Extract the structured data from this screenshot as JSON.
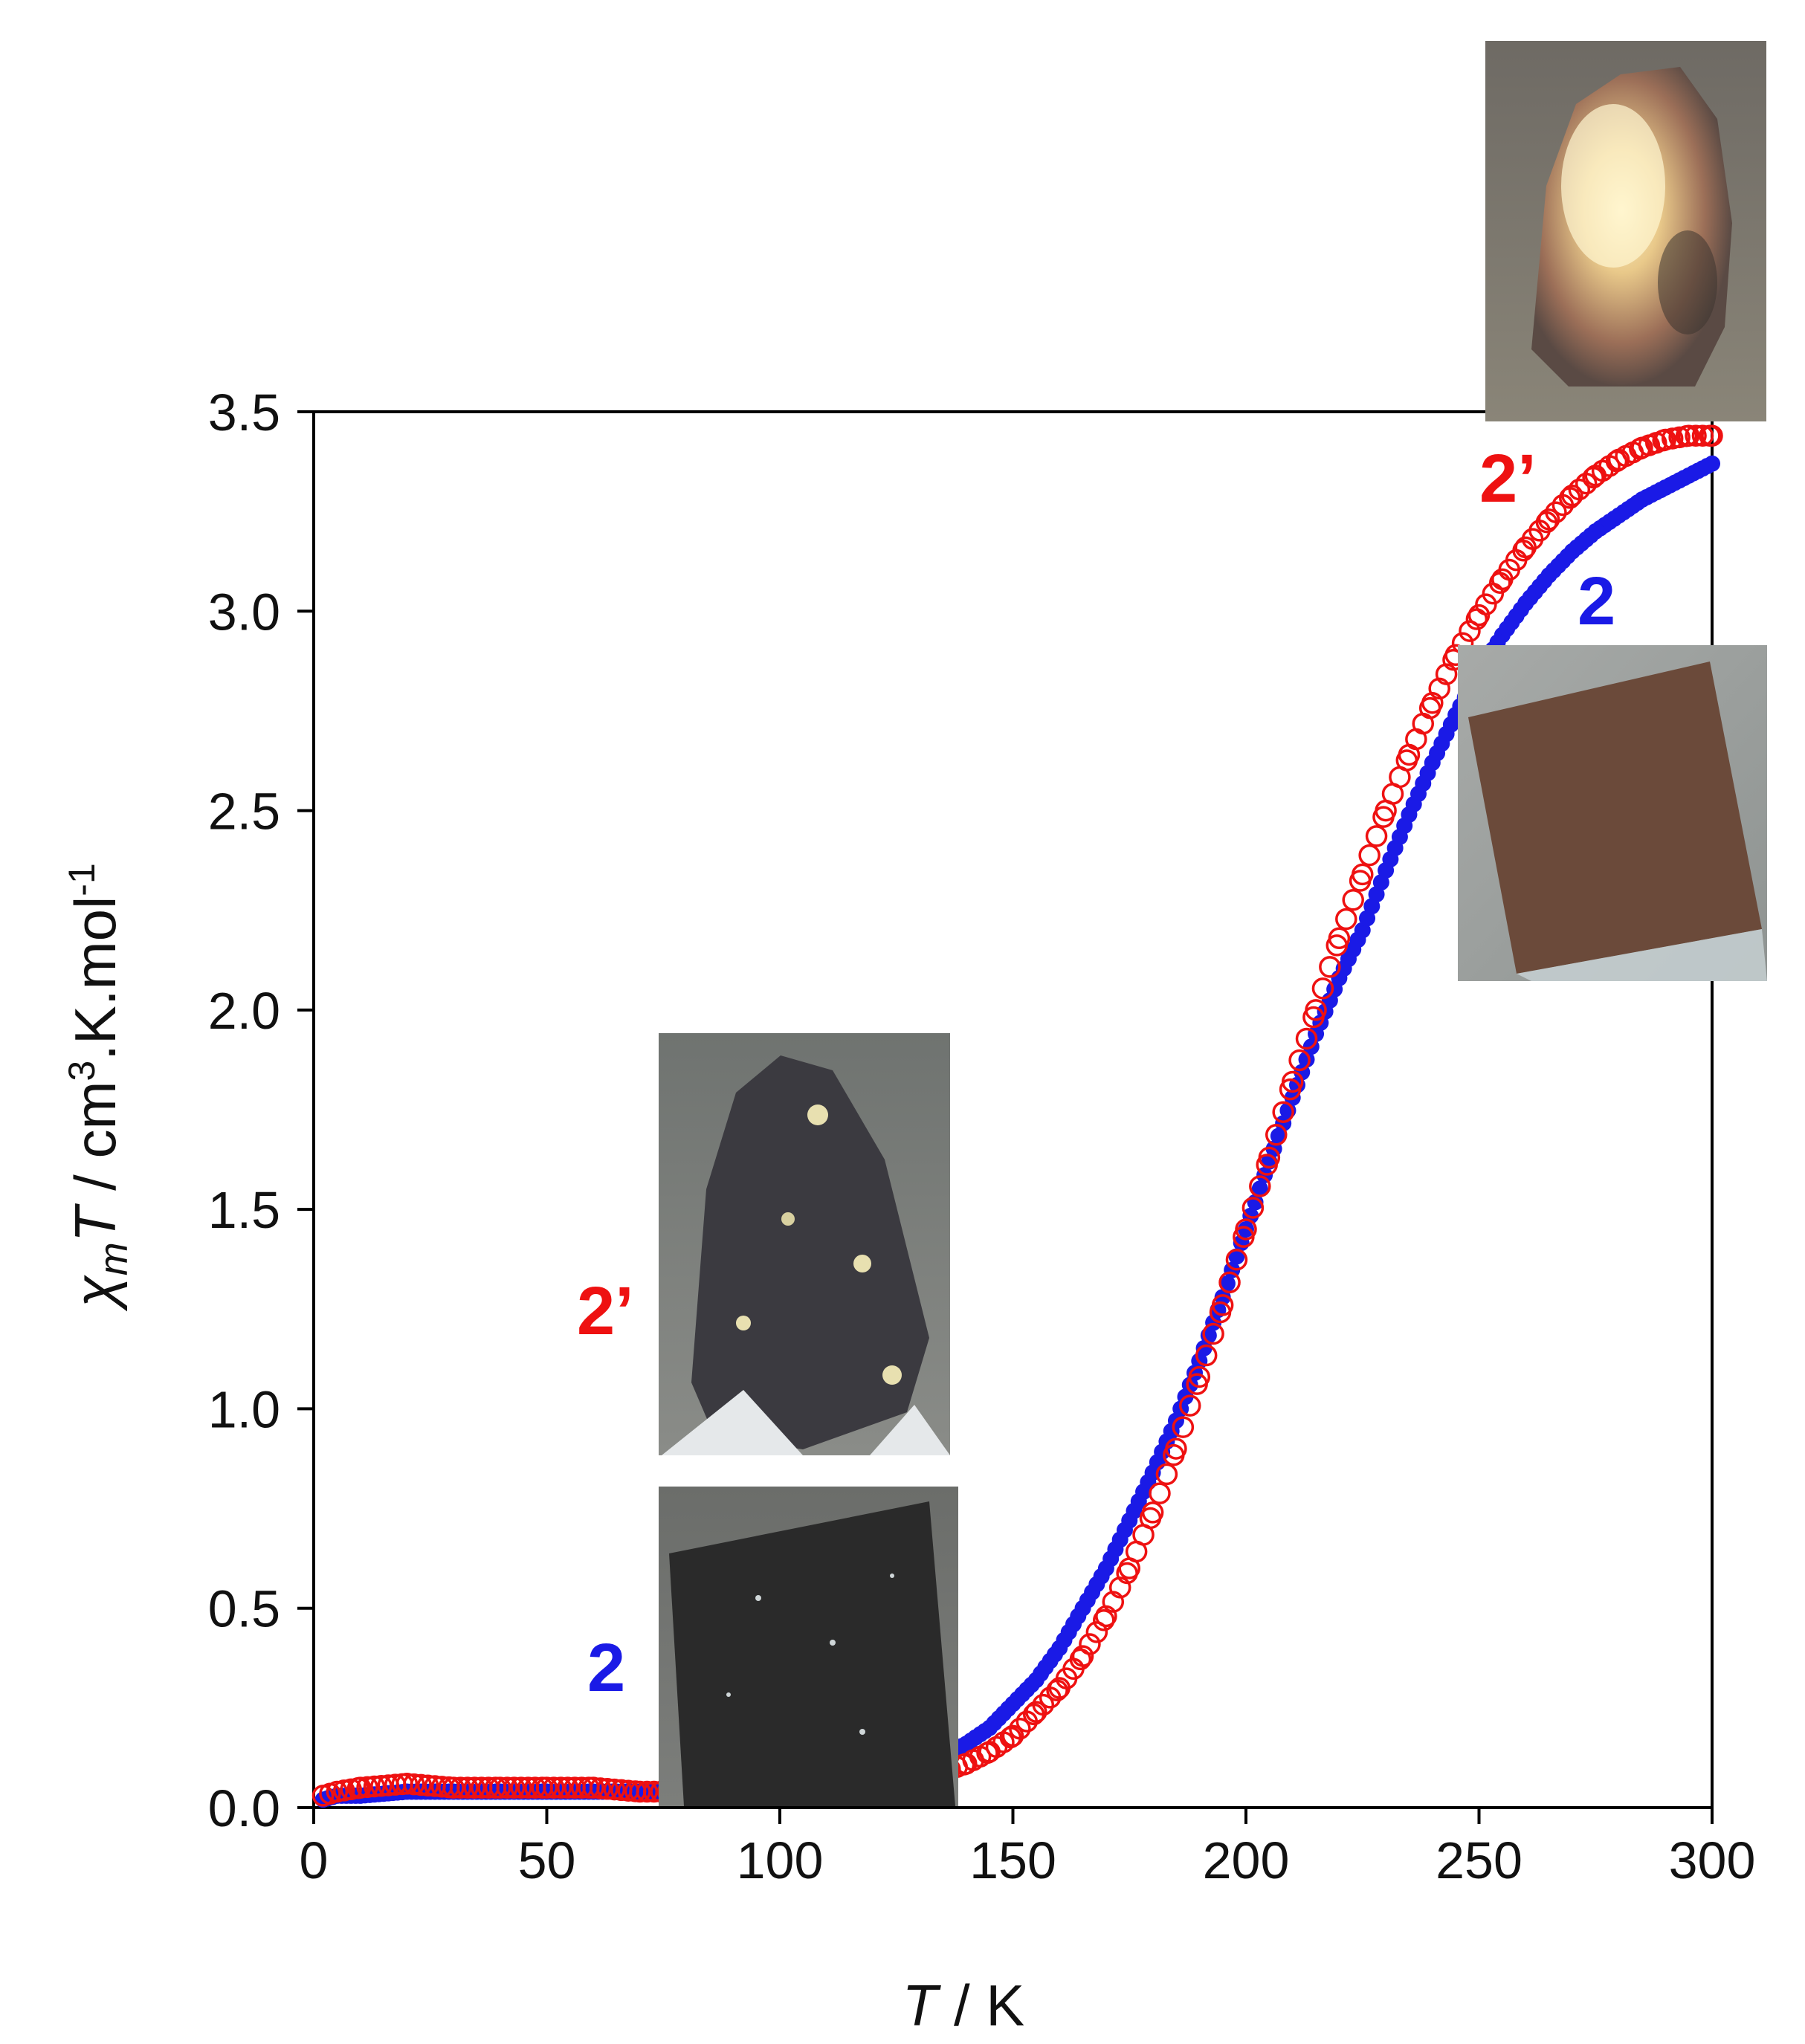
{
  "chart_data": {
    "type": "scatter",
    "xlabel": {
      "italic": "T",
      "rest": " / K"
    },
    "ylabel": {
      "chi": "χ",
      "sub": "m",
      "italic": "T",
      "rest1": " / cm",
      "sup1": "3",
      "rest2": ".K.mol",
      "sup2": "-1"
    },
    "xlim": [
      0,
      300
    ],
    "ylim": [
      0,
      3.5
    ],
    "xticks": [
      "0",
      "50",
      "100",
      "150",
      "200",
      "250",
      "300"
    ],
    "yticks": [
      "0.0",
      "0.5",
      "1.0",
      "1.5",
      "2.0",
      "2.5",
      "3.0",
      "3.5"
    ],
    "grid": false,
    "legend": "none",
    "annotations": [
      {
        "text": "2’",
        "color": "#ee1111",
        "place": "upper-right",
        "series": "2’"
      },
      {
        "text": "2",
        "color": "#1a1ae6",
        "place": "upper-right",
        "series": "2"
      },
      {
        "text": "2’",
        "color": "#ee1111",
        "place": "middle-left",
        "series": "2’"
      },
      {
        "text": "2",
        "color": "#1a1ae6",
        "place": "lower-left",
        "series": "2"
      }
    ],
    "insets": [
      {
        "depicts": "crystal photo, light tip",
        "place": "top-right",
        "series": "2’"
      },
      {
        "depicts": "crystal photo, brown square",
        "place": "right",
        "series": "2"
      },
      {
        "depicts": "crystal photo, dark tip",
        "place": "middle-left",
        "series": "2’"
      },
      {
        "depicts": "crystal photo, dark square",
        "place": "lower-left",
        "series": "2"
      }
    ],
    "series": [
      {
        "name": "2",
        "color": "#1a1ae6",
        "marker": "filled-circle",
        "x": [
          2,
          5,
          10,
          20,
          30,
          40,
          50,
          60,
          70,
          80,
          90,
          100,
          110,
          120,
          125,
          130,
          135,
          140,
          145,
          150,
          155,
          160,
          165,
          170,
          175,
          180,
          185,
          190,
          195,
          200,
          205,
          210,
          215,
          220,
          225,
          230,
          235,
          240,
          245,
          250,
          255,
          260,
          265,
          270,
          275,
          280,
          285,
          290,
          295,
          300
        ],
        "values": [
          0.02,
          0.03,
          0.03,
          0.04,
          0.04,
          0.04,
          0.04,
          0.04,
          0.04,
          0.04,
          0.04,
          0.05,
          0.06,
          0.07,
          0.08,
          0.1,
          0.13,
          0.16,
          0.2,
          0.26,
          0.32,
          0.4,
          0.5,
          0.6,
          0.72,
          0.84,
          0.97,
          1.12,
          1.28,
          1.45,
          1.62,
          1.78,
          1.94,
          2.08,
          2.2,
          2.35,
          2.49,
          2.62,
          2.74,
          2.85,
          2.94,
          3.02,
          3.09,
          3.15,
          3.2,
          3.24,
          3.28,
          3.31,
          3.34,
          3.37
        ]
      },
      {
        "name": "2’",
        "color": "#ee1111",
        "marker": "open-circle",
        "x": [
          2,
          5,
          10,
          20,
          30,
          40,
          50,
          60,
          70,
          80,
          90,
          100,
          110,
          120,
          125,
          130,
          135,
          140,
          145,
          150,
          155,
          160,
          165,
          170,
          175,
          180,
          185,
          190,
          195,
          200,
          205,
          210,
          215,
          220,
          225,
          230,
          235,
          240,
          245,
          250,
          255,
          260,
          265,
          270,
          275,
          280,
          285,
          290,
          295,
          300
        ],
        "values": [
          0.03,
          0.04,
          0.05,
          0.06,
          0.05,
          0.05,
          0.05,
          0.05,
          0.04,
          0.04,
          0.04,
          0.04,
          0.04,
          0.05,
          0.06,
          0.07,
          0.09,
          0.11,
          0.14,
          0.18,
          0.24,
          0.3,
          0.38,
          0.48,
          0.6,
          0.74,
          0.9,
          1.08,
          1.26,
          1.45,
          1.63,
          1.82,
          2.0,
          2.18,
          2.34,
          2.5,
          2.64,
          2.77,
          2.89,
          2.99,
          3.08,
          3.16,
          3.23,
          3.29,
          3.34,
          3.38,
          3.41,
          3.43,
          3.44,
          3.44
        ]
      }
    ]
  }
}
